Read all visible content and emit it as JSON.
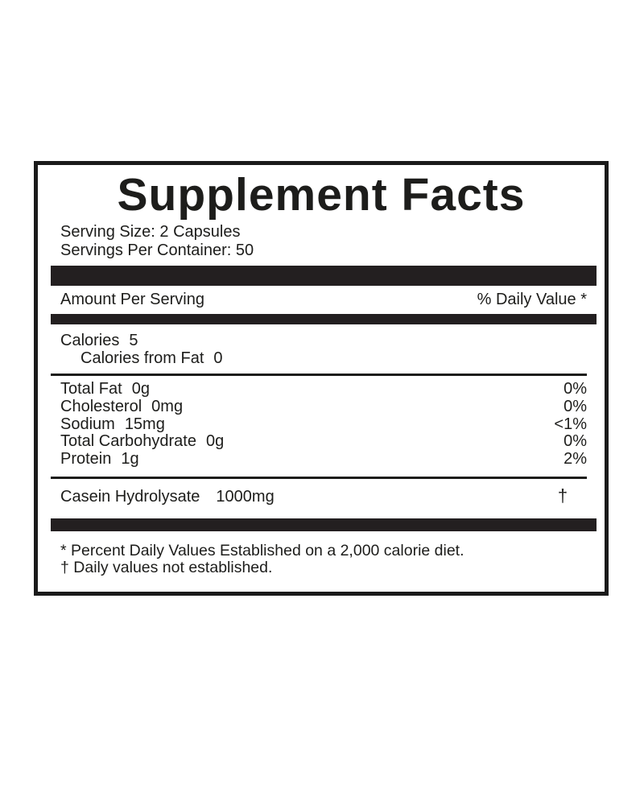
{
  "label": {
    "title": "Supplement Facts",
    "serving": {
      "size": "Serving Size: 2 Capsules",
      "per_container": "Servings Per Container: 50"
    },
    "header": {
      "amount_per_serving": "Amount Per Serving",
      "daily_value": "% Daily Value *"
    },
    "calories": {
      "name": "Calories",
      "value": "5",
      "from_fat_name": "Calories from Fat",
      "from_fat_value": "0"
    },
    "nutrients": [
      {
        "name": "Total Fat",
        "amount": "0g",
        "dv": "0%"
      },
      {
        "name": "Cholesterol",
        "amount": "0mg",
        "dv": "0%"
      },
      {
        "name": "Sodium",
        "amount": "15mg",
        "dv": "<1%"
      },
      {
        "name": "Total Carbohydrate",
        "amount": "0g",
        "dv": "0%"
      },
      {
        "name": "Protein",
        "amount": "1g",
        "dv": "2%"
      }
    ],
    "ingredient": {
      "name": "Casein Hydrolysate",
      "amount": "1000mg",
      "dv": "†"
    },
    "footnotes": {
      "percent": "* Percent Daily Values Established on a 2,000 calorie diet.",
      "dagger": "† Daily values not established."
    },
    "colors": {
      "ink": "#1d1d1b",
      "bar": "#231f20",
      "background": "#ffffff"
    }
  }
}
